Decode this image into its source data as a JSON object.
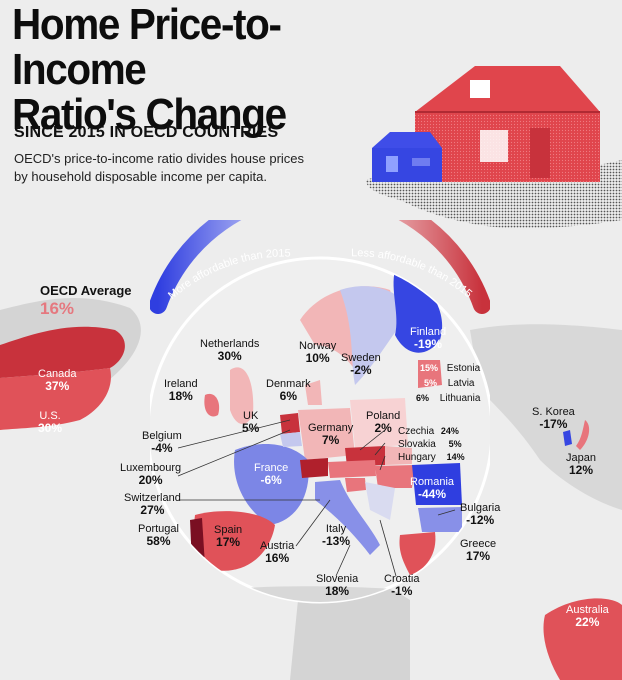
{
  "title_line1": "Home Price-to-Income",
  "title_line2": "Ratio's Change",
  "subtitle": "SINCE 2015 IN OECD COUNTRIES",
  "description": "OECD's price-to-income ratio divides house prices by household disposable income per capita.",
  "oecd_average": {
    "label": "OECD Average",
    "value": "16%"
  },
  "scale": {
    "left": "More affordable than 2015",
    "right": "Less affordable than 2015"
  },
  "colors": {
    "strong_red": "#c8323c",
    "mid_red": "#e8757c",
    "light_red": "#f2b6b7",
    "dark_red": "#7a0f22",
    "light_blue": "#c4c8ee",
    "mid_blue": "#7c86e6",
    "strong_blue": "#2f3ee0",
    "land": "#d4d4d4"
  },
  "countries": [
    {
      "name": "Canada",
      "value": "37%"
    },
    {
      "name": "U.S.",
      "value": "30%"
    },
    {
      "name": "Netherlands",
      "value": "30%"
    },
    {
      "name": "Ireland",
      "value": "18%"
    },
    {
      "name": "Denmark",
      "value": "6%"
    },
    {
      "name": "Norway",
      "value": "10%"
    },
    {
      "name": "Sweden",
      "value": "-2%"
    },
    {
      "name": "Finland",
      "value": "-19%"
    },
    {
      "name": "Estonia",
      "value": "15%"
    },
    {
      "name": "Latvia",
      "value": "5%"
    },
    {
      "name": "Lithuania",
      "value": "6%"
    },
    {
      "name": "UK",
      "value": "5%"
    },
    {
      "name": "Germany",
      "value": "7%"
    },
    {
      "name": "Poland",
      "value": "2%"
    },
    {
      "name": "Belgium",
      "value": "-4%"
    },
    {
      "name": "Czechia",
      "value": "24%"
    },
    {
      "name": "Slovakia",
      "value": "5%"
    },
    {
      "name": "Hungary",
      "value": "14%"
    },
    {
      "name": "Luxembourg",
      "value": "20%"
    },
    {
      "name": "France",
      "value": "-6%"
    },
    {
      "name": "Switzerland",
      "value": "27%"
    },
    {
      "name": "Romania",
      "value": "-44%"
    },
    {
      "name": "Portugal",
      "value": "58%"
    },
    {
      "name": "Spain",
      "value": "17%"
    },
    {
      "name": "Austria",
      "value": "16%"
    },
    {
      "name": "Italy",
      "value": "-13%"
    },
    {
      "name": "Bulgaria",
      "value": "-12%"
    },
    {
      "name": "Greece",
      "value": "17%"
    },
    {
      "name": "Slovenia",
      "value": "18%"
    },
    {
      "name": "Croatia",
      "value": "-1%"
    },
    {
      "name": "S. Korea",
      "value": "-17%"
    },
    {
      "name": "Japan",
      "value": "12%"
    },
    {
      "name": "Australia",
      "value": "22%"
    }
  ]
}
